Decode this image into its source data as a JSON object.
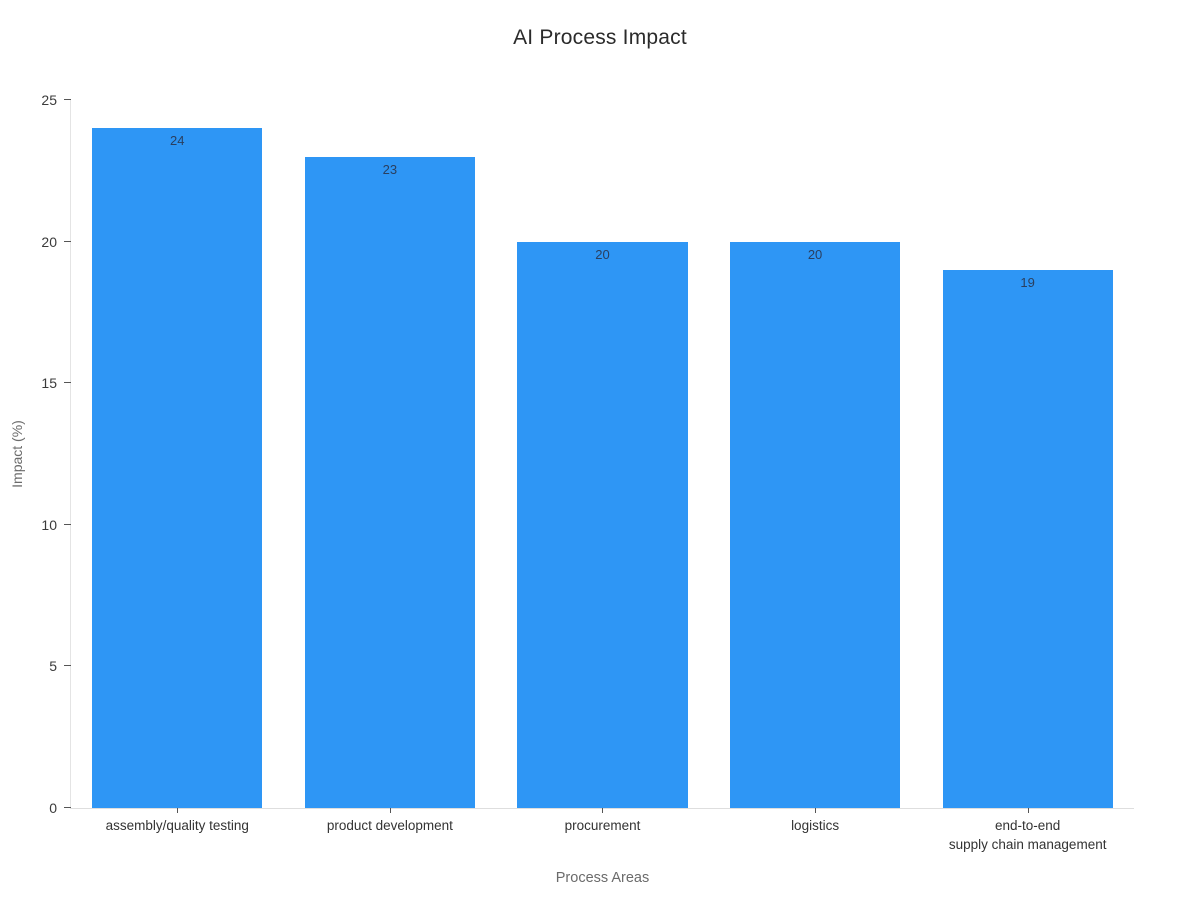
{
  "page": {
    "background": "#ffffff"
  },
  "chart_data": {
    "type": "bar",
    "title": "AI Process Impact",
    "xlabel": "Process Areas",
    "ylabel": "Impact (%)",
    "categories": [
      "assembly/quality testing",
      "product development",
      "procurement",
      "logistics",
      "end-to-end\nsupply chain management"
    ],
    "values": [
      24,
      23,
      20,
      20,
      19
    ],
    "value_labels": [
      "24",
      "23",
      "20",
      "20",
      "19"
    ],
    "ylim": [
      0,
      25
    ],
    "yticks": [
      0,
      5,
      10,
      15,
      20,
      25
    ],
    "bar_color": "#2E96F5",
    "value_label_color": "#2a3f5f",
    "grid": false,
    "legend": "none",
    "orientation": "vertical"
  }
}
